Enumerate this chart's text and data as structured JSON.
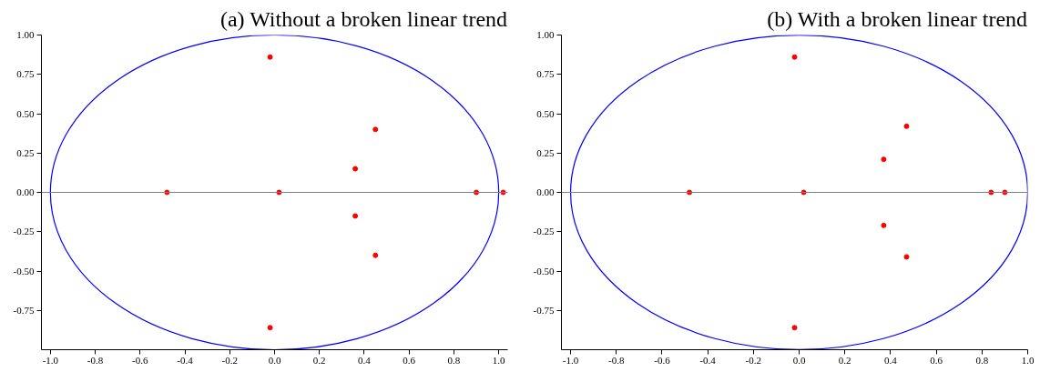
{
  "chart_data": [
    {
      "type": "scatter",
      "title": "(a) Without a broken linear trend",
      "xlim": [
        -1.04,
        1.04
      ],
      "ylim": [
        -1.0,
        1.0
      ],
      "xticks": [
        {
          "value": -1.0,
          "label": "-1.0"
        },
        {
          "value": -0.8,
          "label": "-0.8"
        },
        {
          "value": -0.6,
          "label": "-0.6"
        },
        {
          "value": -0.4,
          "label": "-0.4"
        },
        {
          "value": -0.2,
          "label": "-0.2"
        },
        {
          "value": 0.0,
          "label": "0.0"
        },
        {
          "value": 0.2,
          "label": "0.2"
        },
        {
          "value": 0.4,
          "label": "0.4"
        },
        {
          "value": 0.6,
          "label": "0.6"
        },
        {
          "value": 0.8,
          "label": "0.8"
        },
        {
          "value": 1.0,
          "label": "1.0"
        }
      ],
      "yticks": [
        {
          "value": -0.75,
          "label": "-0.75"
        },
        {
          "value": -0.5,
          "label": "-0.50"
        },
        {
          "value": -0.25,
          "label": "-0.25"
        },
        {
          "value": 0.0,
          "label": "0.00"
        },
        {
          "value": 0.25,
          "label": "0.25"
        },
        {
          "value": 0.5,
          "label": "0.50"
        },
        {
          "value": 0.75,
          "label": "0.75"
        },
        {
          "value": 1.0,
          "label": "1.00"
        }
      ],
      "ref_lines": [
        {
          "axis": "y",
          "value": 0,
          "color": "#808080"
        }
      ],
      "series": [
        {
          "color": "#ff0000",
          "marker": "circle",
          "x": [
            -0.48,
            0.02,
            0.9,
            1.02,
            -0.02,
            -0.02,
            0.36,
            0.36,
            0.45,
            0.45
          ],
          "values": [
            0,
            0,
            0,
            0,
            0.86,
            -0.86,
            0.15,
            -0.15,
            0.4,
            -0.4
          ]
        }
      ]
    },
    {
      "type": "scatter",
      "title": "(b) With a broken linear trend",
      "xlim": [
        -1.04,
        1.0
      ],
      "ylim": [
        -1.0,
        1.0
      ],
      "xticks": [
        {
          "value": -1.0,
          "label": "-1.0"
        },
        {
          "value": -0.8,
          "label": "-0.8"
        },
        {
          "value": -0.6,
          "label": "-0.6"
        },
        {
          "value": -0.4,
          "label": "-0.4"
        },
        {
          "value": -0.2,
          "label": "-0.2"
        },
        {
          "value": 0.0,
          "label": "0.0"
        },
        {
          "value": 0.2,
          "label": "0.2"
        },
        {
          "value": 0.4,
          "label": "0.4"
        },
        {
          "value": 0.6,
          "label": "0.6"
        },
        {
          "value": 0.8,
          "label": "0.8"
        },
        {
          "value": 1.0,
          "label": "1.0"
        }
      ],
      "yticks": [
        {
          "value": -0.75,
          "label": "-0.75"
        },
        {
          "value": -0.5,
          "label": "-0.50"
        },
        {
          "value": -0.25,
          "label": "-0.25"
        },
        {
          "value": 0.0,
          "label": "0.00"
        },
        {
          "value": 0.25,
          "label": "0.25"
        },
        {
          "value": 0.5,
          "label": "0.50"
        },
        {
          "value": 0.75,
          "label": "0.75"
        },
        {
          "value": 1.0,
          "label": "1.00"
        }
      ],
      "ref_lines": [
        {
          "axis": "y",
          "value": 0,
          "color": "#808080"
        }
      ],
      "series": [
        {
          "color": "#ff0000",
          "marker": "circle",
          "x": [
            -0.48,
            0.02,
            0.84,
            0.9,
            -0.02,
            -0.02,
            0.37,
            0.37,
            0.47,
            0.47
          ],
          "values": [
            0,
            0,
            0,
            0,
            0.86,
            -0.86,
            0.21,
            -0.21,
            0.42,
            -0.41
          ]
        }
      ]
    }
  ]
}
